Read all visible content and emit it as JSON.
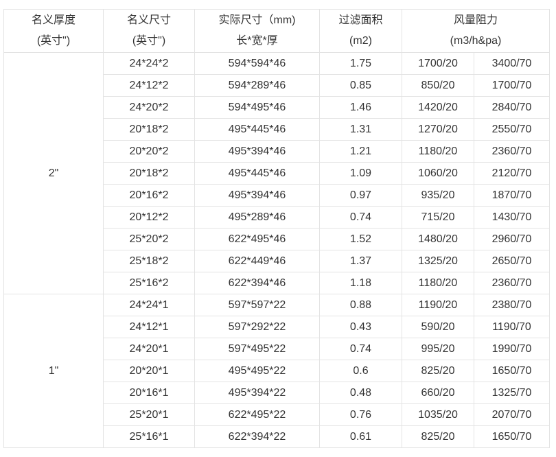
{
  "header": {
    "thickness": [
      "名义厚度",
      "(英寸\")"
    ],
    "nominal_size": [
      "名义尺寸",
      "(英寸\")"
    ],
    "actual_size": [
      "实际尺寸（mm)",
      "长*宽*厚"
    ],
    "filter_area": [
      "过滤面积",
      "(m2)"
    ],
    "airflow": [
      "风量阻力",
      "(m3/h&pa)"
    ]
  },
  "groups": [
    {
      "thickness": "2\"",
      "rows": [
        [
          "24*24*2",
          "594*594*46",
          "1.75",
          "1700/20",
          "3400/70"
        ],
        [
          "24*12*2",
          "594*289*46",
          "0.85",
          "850/20",
          "1700/70"
        ],
        [
          "24*20*2",
          "594*495*46",
          "1.46",
          "1420/20",
          "2840/70"
        ],
        [
          "20*18*2",
          "495*445*46",
          "1.31",
          "1270/20",
          "2550/70"
        ],
        [
          "20*20*2",
          "495*394*46",
          "1.21",
          "1180/20",
          "2360/70"
        ],
        [
          "20*18*2",
          "495*445*46",
          "1.09",
          "1060/20",
          "2120/70"
        ],
        [
          "20*16*2",
          "495*394*46",
          "0.97",
          "935/20",
          "1870/70"
        ],
        [
          "20*12*2",
          "495*289*46",
          "0.74",
          "715/20",
          "1430/70"
        ],
        [
          "25*20*2",
          "622*495*46",
          "1.52",
          "1480/20",
          "2960/70"
        ],
        [
          "25*18*2",
          "622*449*46",
          "1.37",
          "1325/20",
          "2650/70"
        ],
        [
          "25*16*2",
          "622*394*46",
          "1.18",
          "1180/20",
          "2360/70"
        ]
      ]
    },
    {
      "thickness": "1\"",
      "rows": [
        [
          "24*24*1",
          "597*597*22",
          "0.88",
          "1190/20",
          "2380/70"
        ],
        [
          "24*12*1",
          "597*292*22",
          "0.43",
          "590/20",
          "1190/70"
        ],
        [
          "24*20*1",
          "597*495*22",
          "0.74",
          "995/20",
          "1990/70"
        ],
        [
          "20*20*1",
          "495*495*22",
          "0.6",
          "825/20",
          "1650/70"
        ],
        [
          "20*16*1",
          "495*394*22",
          "0.48",
          "660/20",
          "1325/70"
        ],
        [
          "25*20*1",
          "622*495*22",
          "0.76",
          "1035/20",
          "2070/70"
        ],
        [
          "25*16*1",
          "622*394*22",
          "0.61",
          "825/20",
          "1650/70"
        ]
      ]
    }
  ]
}
